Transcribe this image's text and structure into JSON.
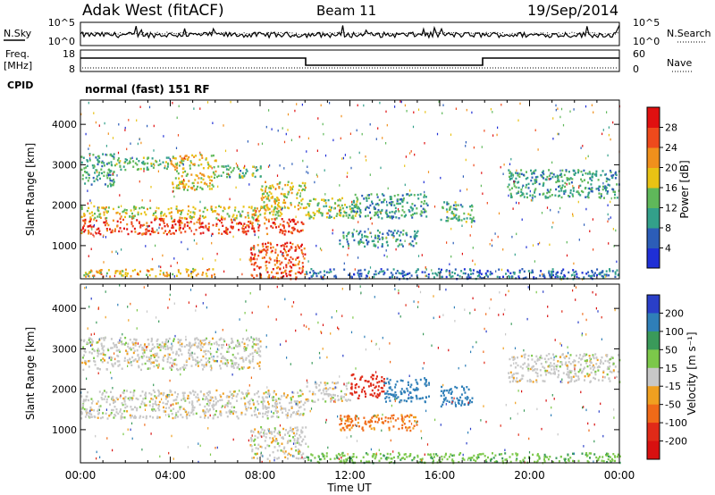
{
  "header": {
    "station": "Adak West (fitACF)",
    "beam": "Beam 11",
    "date": "19/Sep/2014"
  },
  "noise_panel": {
    "left_label": "N.Sky",
    "right_label": "N.Search",
    "left_ticks": [
      "10^5",
      "10^0"
    ],
    "right_ticks": [
      "10^5",
      "10^0"
    ]
  },
  "freq_panel": {
    "left_label_1": "Freq.",
    "left_label_2": "[MHz]",
    "cpid_label": "CPID",
    "right_label": "Nave",
    "left_ticks": [
      "18",
      "8"
    ],
    "right_ticks": [
      "60",
      "0"
    ],
    "cpid_text": "normal (fast) 151 RF"
  },
  "x_axis": {
    "title": "Time UT",
    "tick_labels": [
      "00:00",
      "04:00",
      "08:00",
      "12:00",
      "16:00",
      "20:00",
      "00:00"
    ]
  },
  "chart_data": [
    {
      "type": "heatmap",
      "panel": "power",
      "ylabel": "Slant Range [km]",
      "yticks": [
        1000,
        2000,
        3000,
        4000
      ],
      "ylim": [
        180,
        4600
      ],
      "xlim_hours": [
        0,
        24
      ],
      "colorbar": {
        "label": "Power [dB]",
        "ticks": [
          4,
          8,
          12,
          16,
          20,
          24,
          28
        ],
        "range": [
          0,
          32
        ],
        "colors": [
          "#1f2fd6",
          "#2c5db8",
          "#33a08a",
          "#5fb85a",
          "#e8c214",
          "#f0901c",
          "#ee4a1c",
          "#e01010"
        ]
      },
      "regions": [
        {
          "t": [
            0.0,
            10.0
          ],
          "r": [
            1300,
            1700
          ],
          "level": 27
        },
        {
          "t": [
            0.0,
            9.0
          ],
          "r": [
            1700,
            2000
          ],
          "level": 17
        },
        {
          "t": [
            0.0,
            1.5
          ],
          "r": [
            2500,
            3300
          ],
          "level": 11
        },
        {
          "t": [
            1.5,
            4.0
          ],
          "r": [
            2900,
            3200
          ],
          "level": 13
        },
        {
          "t": [
            4.0,
            6.0
          ],
          "r": [
            2400,
            3300
          ],
          "level": 19
        },
        {
          "t": [
            6.0,
            8.0
          ],
          "r": [
            2700,
            3000
          ],
          "level": 12
        },
        {
          "t": [
            8.0,
            10.0
          ],
          "r": [
            1900,
            2600
          ],
          "level": 18
        },
        {
          "t": [
            7.5,
            10.0
          ],
          "r": [
            200,
            1100
          ],
          "level": 26
        },
        {
          "t": [
            10.0,
            12.5
          ],
          "r": [
            1700,
            2200
          ],
          "level": 15
        },
        {
          "t": [
            12.0,
            15.5
          ],
          "r": [
            1700,
            2300
          ],
          "level": 11
        },
        {
          "t": [
            11.5,
            15.0
          ],
          "r": [
            1000,
            1400
          ],
          "level": 10
        },
        {
          "t": [
            16.0,
            17.5
          ],
          "r": [
            1600,
            2100
          ],
          "level": 12
        },
        {
          "t": [
            19.0,
            24.0
          ],
          "r": [
            2200,
            2900
          ],
          "level": 11
        },
        {
          "t": [
            0.0,
            6.0
          ],
          "r": [
            250,
            450
          ],
          "level": 20
        },
        {
          "t": [
            10.0,
            24.0
          ],
          "r": [
            200,
            450
          ],
          "level": 7
        }
      ]
    },
    {
      "type": "heatmap",
      "panel": "velocity",
      "ylabel": "Slant Range [km]",
      "yticks": [
        1000,
        2000,
        3000,
        4000
      ],
      "ylim": [
        180,
        4600
      ],
      "xlim_hours": [
        0,
        24
      ],
      "colorbar": {
        "label": "Velocity [m s⁻¹]",
        "ticks": [
          200,
          100,
          50,
          15,
          -15,
          -50,
          -100,
          -200
        ],
        "colors": [
          "#2a3fc8",
          "#2f7fb8",
          "#3a9a5a",
          "#7cc84a",
          "#c8c8c8",
          "#f0a020",
          "#f06a18",
          "#e02a18",
          "#d81010"
        ]
      },
      "regions": [
        {
          "t": [
            0.0,
            10.0
          ],
          "r": [
            1300,
            2000
          ],
          "vel": 0
        },
        {
          "t": [
            0.0,
            8.0
          ],
          "r": [
            2500,
            3300
          ],
          "vel": 0
        },
        {
          "t": [
            10.0,
            12.0
          ],
          "r": [
            1700,
            2200
          ],
          "vel": 0
        },
        {
          "t": [
            12.0,
            13.5
          ],
          "r": [
            1800,
            2400
          ],
          "vel": -180
        },
        {
          "t": [
            13.5,
            15.5
          ],
          "r": [
            1700,
            2300
          ],
          "vel": 160
        },
        {
          "t": [
            16.0,
            17.5
          ],
          "r": [
            1600,
            2100
          ],
          "vel": 180
        },
        {
          "t": [
            11.5,
            15.0
          ],
          "r": [
            1000,
            1400
          ],
          "vel": -60
        },
        {
          "t": [
            7.5,
            10.0
          ],
          "r": [
            300,
            1100
          ],
          "vel": 0
        },
        {
          "t": [
            19.0,
            24.0
          ],
          "r": [
            2200,
            2900
          ],
          "vel": 0
        },
        {
          "t": [
            10.0,
            24.0
          ],
          "r": [
            200,
            450
          ],
          "vel": 40
        }
      ]
    }
  ]
}
